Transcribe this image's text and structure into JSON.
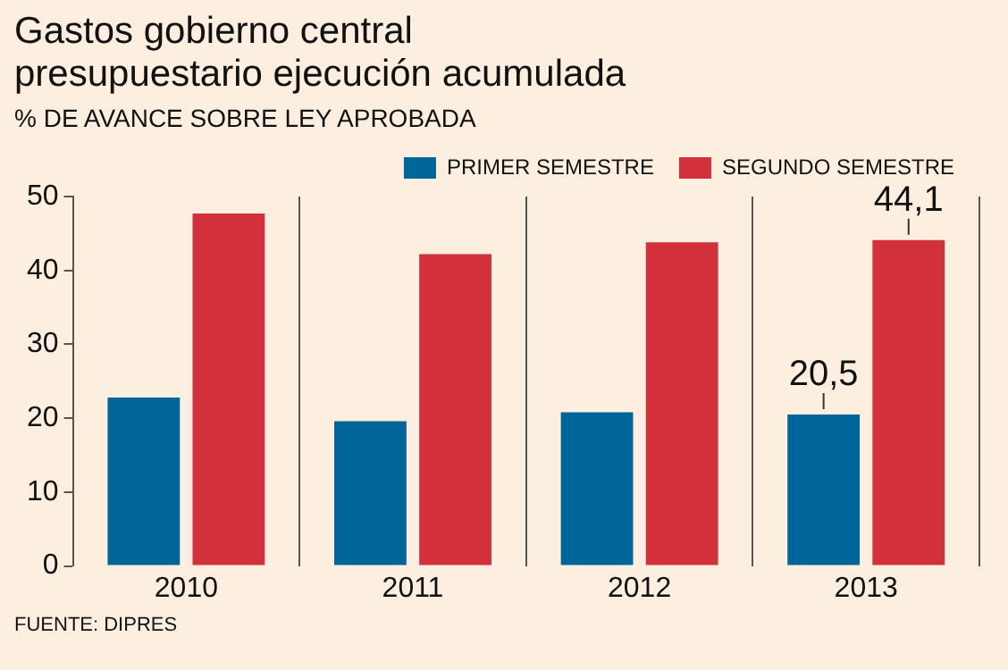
{
  "chart_data": {
    "type": "bar",
    "title": "Gastos gobierno central\npresupuestario ejecución acumulada",
    "subtitle": "% DE AVANCE SOBRE LEY APROBADA",
    "categories": [
      "2010",
      "2011",
      "2012",
      "2013"
    ],
    "series": [
      {
        "name": "PRIMER SEMESTRE",
        "color": "#006699",
        "values": [
          22.8,
          19.6,
          20.8,
          20.5
        ],
        "value_labels": [
          null,
          null,
          null,
          "20,5"
        ]
      },
      {
        "name": "SEGUNDO SEMESTRE",
        "color": "#d2303a",
        "values": [
          47.7,
          42.2,
          43.8,
          44.1
        ],
        "value_labels": [
          null,
          null,
          null,
          "44,1"
        ]
      }
    ],
    "ylim": [
      0,
      50
    ],
    "yticks": [
      0,
      10,
      20,
      30,
      40,
      50
    ],
    "grid": "x",
    "legend": "top right",
    "annotations": [
      "FUENTE: DIPRES"
    ]
  }
}
